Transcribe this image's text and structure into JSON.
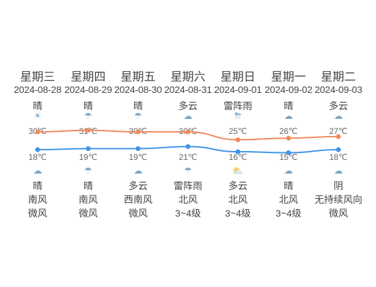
{
  "colors": {
    "high_line": "#f08a5d",
    "low_line": "#3d95e8"
  },
  "days": [
    {
      "weekday": "星期三",
      "date": "2024-08-28",
      "day_cond": "晴",
      "day_icon": "sun-icon",
      "high": "30℃",
      "high_val": 30,
      "low": "18℃",
      "low_val": 18,
      "night_icon": "cloud-icon",
      "night_cond": "晴",
      "wind_dir": "南风",
      "wind_level": "微风"
    },
    {
      "weekday": "星期四",
      "date": "2024-08-29",
      "day_cond": "晴",
      "day_icon": "rain-icon",
      "high": "31℃",
      "high_val": 31,
      "low": "19℃",
      "low_val": 19,
      "night_icon": "rain-icon",
      "night_cond": "晴",
      "wind_dir": "南风",
      "wind_level": "微风"
    },
    {
      "weekday": "星期五",
      "date": "2024-08-30",
      "day_cond": "晴",
      "day_icon": "rain-icon",
      "high": "30℃",
      "high_val": 30,
      "low": "19℃",
      "low_val": 19,
      "night_icon": "cloud-icon",
      "night_cond": "多云",
      "wind_dir": "西南风",
      "wind_level": "微风"
    },
    {
      "weekday": "星期六",
      "date": "2024-08-31",
      "day_cond": "多云",
      "day_icon": "cloud-icon",
      "high": "30℃",
      "high_val": 30,
      "low": "21℃",
      "low_val": 21,
      "night_icon": "rain-icon",
      "night_cond": "雷阵雨",
      "wind_dir": "北风",
      "wind_level": "3~4级"
    },
    {
      "weekday": "星期日",
      "date": "2024-09-01",
      "day_cond": "雷阵雨",
      "day_icon": "thunder-icon",
      "high": "25℃",
      "high_val": 25,
      "low": "16℃",
      "low_val": 16,
      "night_icon": "partly-cloudy-icon",
      "night_cond": "多云",
      "wind_dir": "北风",
      "wind_level": "3~4级"
    },
    {
      "weekday": "星期一",
      "date": "2024-09-02",
      "day_cond": "晴",
      "day_icon": "cloud-icon",
      "high": "26℃",
      "high_val": 26,
      "low": "15℃",
      "low_val": 15,
      "night_icon": "cloud-icon",
      "night_cond": "晴",
      "wind_dir": "北风",
      "wind_level": "3~4级"
    },
    {
      "weekday": "星期二",
      "date": "2024-09-03",
      "day_cond": "多云",
      "day_icon": "cloud-icon",
      "high": "27℃",
      "high_val": 27,
      "low": "18℃",
      "low_val": 18,
      "night_icon": "cloud-icon",
      "night_cond": "阴",
      "wind_dir": "无持续风向",
      "wind_level": "微风"
    }
  ]
}
